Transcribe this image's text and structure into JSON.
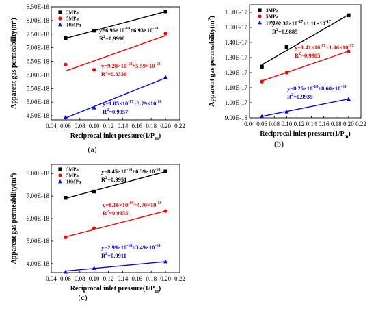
{
  "chart_data": [
    {
      "type": "scatter",
      "panel_label": "(a)",
      "xlabel_main": "Reciprocal inlet pressure(1/P",
      "xlabel_sub": "m",
      "xlabel_end": ")",
      "ylabel_main": "Apparent gas permeability(m",
      "ylabel_sup": "2",
      "ylabel_end": ")",
      "xlim": [
        0.04,
        0.22
      ],
      "ylim": [
        4.35,
        8.5
      ],
      "x_ticks": [
        0.04,
        0.06,
        0.08,
        0.1,
        0.12,
        0.14,
        0.16,
        0.18,
        0.2,
        0.22
      ],
      "x_tick_labels": [
        "0.04",
        "0.06",
        "0.08",
        "0.10",
        "0.12",
        "0.14",
        "0.16",
        "0.18",
        "0.20",
        "0.22"
      ],
      "y_ticks": [
        4.5,
        5.0,
        5.5,
        6.0,
        6.5,
        7.0,
        7.5,
        8.0,
        8.5
      ],
      "y_tick_labels": [
        "4.50E-18",
        "5.00E-18",
        "5.50E-18",
        "6.00E-18",
        "6.50E-18",
        "7.00E-18",
        "7.50E-18",
        "8.00E-18",
        "8.50E-18"
      ],
      "y_unit": "1E-18 m^2",
      "legend_position": "top-left",
      "grid": false,
      "series": [
        {
          "name": "3MPa",
          "marker": "square",
          "color": "#000000",
          "x": [
            0.06,
            0.1,
            0.2
          ],
          "y": [
            7.35,
            7.63,
            8.33
          ],
          "fit": {
            "slope": 6.96,
            "intercept": 6.93
          },
          "eq_main": "y=6.96×10",
          "eq_exp1": "-18",
          "eq_mid": "+6.93×10",
          "eq_exp2": "-18",
          "r2_label": "R",
          "r2_sup": "2",
          "r2_value": "=0.9998"
        },
        {
          "name": "5MPa",
          "marker": "circle",
          "color": "#ff0000",
          "x": [
            0.06,
            0.1,
            0.2
          ],
          "y": [
            6.38,
            6.19,
            7.52
          ],
          "fit": {
            "slope": 9.28,
            "intercept": 5.59
          },
          "eq_main": "y=9.28×10",
          "eq_exp1": "-18",
          "eq_mid": "+5.59×10",
          "eq_exp2": "-18",
          "r2_label": "R",
          "r2_sup": "2",
          "r2_value": "=0.8336"
        },
        {
          "name": "10MPa",
          "marker": "triangle",
          "color": "#0000ff",
          "x": [
            0.06,
            0.1,
            0.2
          ],
          "y": [
            4.45,
            4.8,
            5.92
          ],
          "fit": {
            "slope": 10.5,
            "intercept": 3.79
          },
          "eq_main": "y=1.05×10",
          "eq_exp1": "-17",
          "eq_mid": "+3.79×10",
          "eq_exp2": "-18",
          "r2_label": "R",
          "r2_sup": "2",
          "r2_value": "=0.9957"
        }
      ]
    },
    {
      "type": "scatter",
      "panel_label": "(b)",
      "xlabel_main": "Reciprocal inlet pressure(1/P",
      "xlabel_sub": "m",
      "xlabel_end": ")",
      "ylabel_main": "Apparent gas permeability(m",
      "ylabel_sup": "2",
      "ylabel_end": ")",
      "xlim": [
        0.04,
        0.22
      ],
      "ylim": [
        0.9,
        1.65
      ],
      "x_ticks": [
        0.04,
        0.06,
        0.08,
        0.1,
        0.12,
        0.14,
        0.16,
        0.18,
        0.2,
        0.22
      ],
      "x_tick_labels": [
        "0.04",
        "0.06",
        "0.08",
        "0.10",
        "0.12",
        "0.14",
        "0.16",
        "0.18",
        "0.20",
        "0.22"
      ],
      "y_ticks": [
        0.9,
        1.0,
        1.1,
        1.2,
        1.3,
        1.4,
        1.5,
        1.6
      ],
      "y_tick_labels": [
        "9.00E-18",
        "1.00E-17",
        "1.10E-17",
        "1.20E-17",
        "1.30E-17",
        "1.40E-17",
        "1.50E-17",
        "1.60E-17"
      ],
      "y_unit": "1E-17 m^2",
      "legend_position": "top-left",
      "grid": false,
      "series": [
        {
          "name": "3MPa",
          "marker": "square",
          "color": "#000000",
          "x": [
            0.06,
            0.1,
            0.2
          ],
          "y": [
            1.24,
            1.37,
            1.58
          ],
          "fit": {
            "slope": 2.37,
            "intercept": 1.11
          },
          "eq_main": "y=2.37×10",
          "eq_exp1": "-17",
          "eq_mid": "+1.11×10",
          "eq_exp2": "-17",
          "r2_label": "R",
          "r2_sup": "2",
          "r2_value": "=0.9885"
        },
        {
          "name": "5MPa",
          "marker": "circle",
          "color": "#ff0000",
          "x": [
            0.06,
            0.1,
            0.2
          ],
          "y": [
            1.14,
            1.2,
            1.34
          ],
          "fit": {
            "slope": 1.41,
            "intercept": 1.06
          },
          "eq_main": "y=1.41×10",
          "eq_exp1": "-17",
          "eq_mid": "+1.06×10",
          "eq_exp2": "-17",
          "r2_label": "R",
          "r2_sup": "2",
          "r2_value": "=0.9985"
        },
        {
          "name": "10MPa",
          "marker": "triangle",
          "color": "#0000ff",
          "x": [
            0.06,
            0.1,
            0.2
          ],
          "y": [
            0.91,
            0.94,
            1.025
          ],
          "fit": {
            "slope": 0.825,
            "intercept": 0.86
          },
          "eq_main": "y=8.25×10",
          "eq_exp1": "-18",
          "eq_mid": "+8.60×10",
          "eq_exp2": "-18",
          "r2_label": "R",
          "r2_sup": "2",
          "r2_value": "=0.9939"
        }
      ]
    },
    {
      "type": "scatter",
      "panel_label": "(c)",
      "xlabel_main": "Reciprocal inlet pressure(1/P",
      "xlabel_sub": "m",
      "xlabel_end": ")",
      "ylabel_main": "Apparent gas permeability(m",
      "ylabel_sup": "2",
      "ylabel_end": ")",
      "xlim": [
        0.04,
        0.22
      ],
      "ylim": [
        3.6,
        8.4
      ],
      "x_ticks": [
        0.04,
        0.06,
        0.08,
        0.1,
        0.12,
        0.14,
        0.16,
        0.18,
        0.2,
        0.22
      ],
      "x_tick_labels": [
        "0.04",
        "0.06",
        "0.08",
        "0.10",
        "0.12",
        "0.14",
        "0.16",
        "0.18",
        "0.20",
        "0.22"
      ],
      "y_ticks": [
        4.0,
        5.0,
        6.0,
        7.0,
        8.0
      ],
      "y_tick_labels": [
        "4.00E-18",
        "5.00E-18",
        "6.00E-18",
        "7.00E-18",
        "8.00E-18"
      ],
      "y_unit": "1E-18 m^2",
      "legend_position": "top-left",
      "grid": false,
      "series": [
        {
          "name": "3MPa",
          "marker": "square",
          "color": "#000000",
          "x": [
            0.06,
            0.1,
            0.2
          ],
          "y": [
            6.92,
            7.2,
            8.09
          ],
          "fit": {
            "slope": 8.45,
            "intercept": 6.39
          },
          "eq_main": "y=8.45×10",
          "eq_exp1": "-18",
          "eq_mid": "+6.39×10",
          "eq_exp2": "-18",
          "r2_label": "R",
          "r2_sup": "2",
          "r2_value": "=0.9951"
        },
        {
          "name": "5MPa",
          "marker": "circle",
          "color": "#ff0000",
          "x": [
            0.06,
            0.1,
            0.2
          ],
          "y": [
            5.17,
            5.57,
            6.33
          ],
          "fit": {
            "slope": 8.16,
            "intercept": 4.7
          },
          "eq_main": "y=8.16×10",
          "eq_exp1": "-18",
          "eq_mid": "+4.70×10",
          "eq_exp2": "-18",
          "r2_label": "R",
          "r2_sup": "2",
          "r2_value": "=0.9955"
        },
        {
          "name": "10MPa",
          "marker": "triangle",
          "color": "#0000ff",
          "x": [
            0.06,
            0.1,
            0.2
          ],
          "y": [
            3.63,
            3.8,
            4.09
          ],
          "fit": {
            "slope": 2.99,
            "intercept": 3.49
          },
          "eq_main": "y=2.99×10",
          "eq_exp1": "-18",
          "eq_mid": "+3.49×10",
          "eq_exp2": "-18",
          "r2_label": "R",
          "r2_sup": "2",
          "r2_value": "=0.9911"
        }
      ]
    }
  ]
}
